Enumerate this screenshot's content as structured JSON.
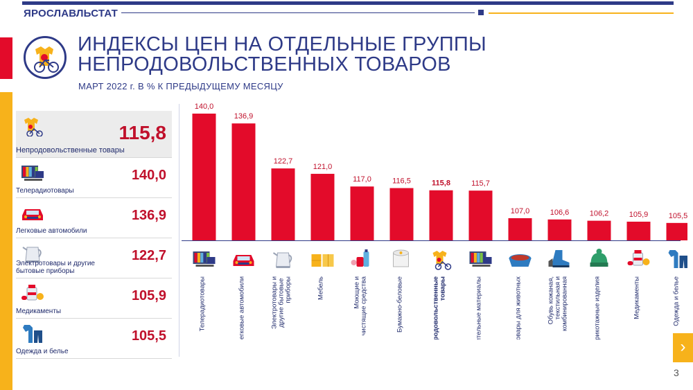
{
  "header": {
    "brand": "ЯРОСЛАВЛЬСТАТ",
    "title_line1": "ИНДЕКСЫ ЦЕН НА ОТДЕЛЬНЫЕ ГРУППЫ",
    "title_line2": "НЕПРОДОВОЛЬСТВЕННЫХ ТОВАРОВ",
    "subtitle": "МАРТ  2022 г. В % К ПРЕДЫДУЩЕМУ  МЕСЯЦУ"
  },
  "colors": {
    "accent_blue": "#2e3a87",
    "bar_red": "#e30b2a",
    "value_red": "#c0102b",
    "accent_yellow": "#f7b21b"
  },
  "panel": {
    "items": [
      {
        "label": "Непродовольственные товары",
        "value": "115,8",
        "icon": "clothes-bicycle-icon"
      },
      {
        "label": "Теле­радиотовары",
        "value": "140,0",
        "icon": "tv-icon"
      },
      {
        "label": "Легковые автомобили",
        "value": "136,9",
        "icon": "car-icon"
      },
      {
        "label": "Электротовары  и другие бытовые  приборы",
        "value": "122,7",
        "icon": "kettle-icon"
      },
      {
        "label": "Медикаменты",
        "value": "105,9",
        "icon": "medicine-icon"
      },
      {
        "label": "Одежда  и белье",
        "value": "105,5",
        "icon": "clothes-icon"
      }
    ]
  },
  "chart_data": {
    "type": "bar",
    "categories": [
      "Телерадиотовары",
      "Легковые автомобили",
      "Электротовары  и другие бытовые  приборы",
      "Мебель",
      "Моющие и чистящие средства",
      "Бумажно-беловые",
      "Непродовольственные товары",
      "Строительные материалы",
      "Товары  для животных",
      "Обувь кожаная, текстильная и комбинированная",
      "Трикотажные  изделия",
      "Медикаменты",
      "Одежда и белье"
    ],
    "values": [
      140.0,
      136.9,
      122.7,
      121.0,
      117.0,
      116.5,
      115.8,
      115.7,
      107.0,
      106.6,
      106.2,
      105.9,
      105.5
    ],
    "labels": [
      "140,0",
      "136,9",
      "122,7",
      "121,0",
      "117,0",
      "116,5",
      "115,8",
      "115,7",
      "107,0",
      "106,6",
      "106,2",
      "105,9",
      "105,5"
    ],
    "highlight_index": 6,
    "icons": [
      "tv-icon",
      "car-icon",
      "kettle-icon",
      "furniture-icon",
      "detergent-icon",
      "paper-roll-icon",
      "clothes-bicycle-icon",
      "building-materials-icon",
      "pet-bowl-icon",
      "boot-icon",
      "knit-hat-icon",
      "medicine-icon",
      "clothes-icon"
    ],
    "ylim": [
      100,
      140
    ],
    "grid": false,
    "title": "",
    "xlabel": "",
    "ylabel": ""
  },
  "nav": {
    "next_label": "›",
    "page_number": "3"
  }
}
